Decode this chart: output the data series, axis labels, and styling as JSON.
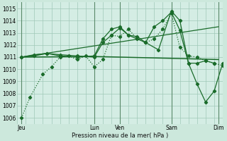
{
  "background_color": "#cce8dc",
  "grid_color": "#a0c8b8",
  "line_color": "#1a6b2a",
  "plot_bg": "#d4ede4",
  "xlim": [
    0,
    96
  ],
  "ylim": [
    1005.5,
    1015.5
  ],
  "yticks": [
    1006,
    1007,
    1008,
    1009,
    1010,
    1011,
    1012,
    1013,
    1014,
    1015
  ],
  "xlabel": "Pression niveau de la mer( hPa )",
  "day_x": {
    "Jeu": 0,
    "Lun": 36,
    "Ven": 48,
    "Sam": 72,
    "Dim": 96
  },
  "xtick_positions": [
    2,
    18,
    36,
    48,
    72,
    94
  ],
  "xtick_labels": [
    "Jeu",
    "",
    "Lun",
    "Ven",
    "Sam",
    "Dim"
  ],
  "vline_positions": [
    2,
    36,
    48,
    72,
    94
  ],
  "line_diagonal": {
    "x": [
      2,
      94
    ],
    "y": [
      1011.0,
      1013.5
    ],
    "lw": 0.9
  },
  "line_dotted": {
    "x": [
      2,
      6,
      12,
      16,
      20,
      24,
      28,
      32,
      36,
      40,
      44,
      48,
      52,
      56,
      60,
      64,
      68,
      72,
      76,
      80,
      84,
      88,
      92,
      96
    ],
    "y": [
      1006.0,
      1007.7,
      1009.6,
      1010.2,
      1011.0,
      1011.1,
      1010.8,
      1011.1,
      1010.2,
      1010.8,
      1012.8,
      1012.7,
      1013.3,
      1012.5,
      1012.2,
      1012.5,
      1013.3,
      1014.6,
      1011.8,
      1011.1,
      1011.0,
      1010.7,
      1010.5,
      1010.3
    ],
    "lw": 0.9
  },
  "line_solid_mid": {
    "x": [
      2,
      8,
      14,
      20,
      28,
      36,
      40,
      44,
      48,
      52,
      56,
      60,
      64,
      68,
      72,
      76,
      80,
      84,
      88,
      92
    ],
    "y": [
      1011.0,
      1011.2,
      1011.3,
      1011.2,
      1011.1,
      1011.0,
      1012.2,
      1012.8,
      1013.4,
      1012.8,
      1012.7,
      1012.2,
      1013.5,
      1014.0,
      1014.7,
      1013.2,
      1010.5,
      1010.5,
      1010.7,
      1010.5
    ],
    "lw": 0.9
  },
  "line_solid_peak": {
    "x": [
      2,
      8,
      14,
      20,
      28,
      36,
      40,
      44,
      48,
      52,
      60,
      66,
      72,
      76,
      80,
      84,
      88,
      92,
      96
    ],
    "y": [
      1011.0,
      1011.1,
      1011.3,
      1011.1,
      1011.0,
      1011.1,
      1012.5,
      1013.3,
      1013.5,
      1012.8,
      1012.2,
      1011.6,
      1014.8,
      1014.0,
      1010.5,
      1008.8,
      1007.3,
      1008.2,
      1010.5
    ],
    "lw": 0.9
  },
  "line_flat": {
    "x": [
      2,
      36,
      48,
      72,
      94
    ],
    "y": [
      1011.0,
      1011.05,
      1011.0,
      1010.9,
      1010.8
    ],
    "lw": 1.1
  }
}
